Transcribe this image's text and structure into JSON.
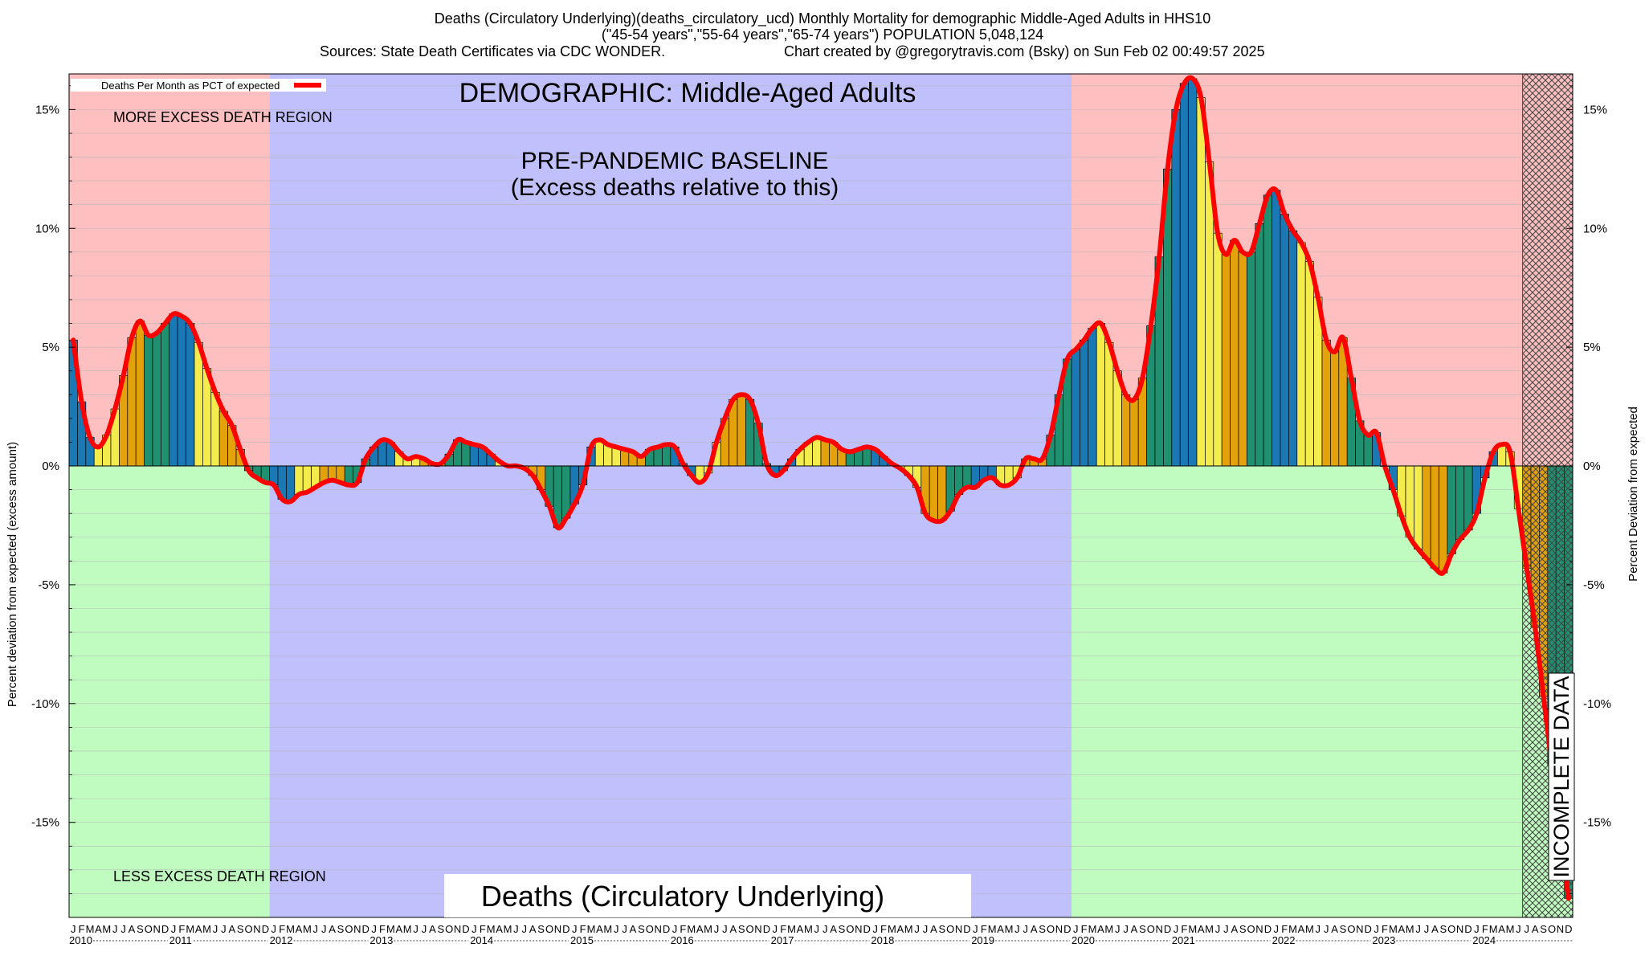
{
  "header": {
    "line1": "Deaths (Circulatory Underlying)(deaths_circulatory_ucd) Monthly Mortality for demographic Middle-Aged Adults in HHS10",
    "line2": "(\"45-54 years\",\"55-64 years\",\"65-74 years\") POPULATION 5,048,124",
    "line3a": "Sources: State Death Certificates via CDC WONDER.",
    "line3b": "Chart created by @gregorytravis.com (Bsky) on Sun Feb 02 00:49:57 2025"
  },
  "colors": {
    "excess_region": "#fdbfbf",
    "less_region": "#c0fbc0",
    "baseline_region": "#c0c0fd",
    "curve": "#ff0000",
    "bar_palette": [
      "#1a78b4",
      "#f4ec4c",
      "#e3a10b",
      "#1f9170"
    ]
  },
  "chart_data": {
    "type": "bar",
    "title": "Deaths (Circulatory Underlying)",
    "banner": "DEMOGRAPHIC: Middle-Aged Adults",
    "baseline_label_line1": "PRE-PANDEMIC BASELINE",
    "baseline_label_line2": "(Excess deaths relative to this)",
    "more_region_label": "MORE EXCESS DEATH REGION",
    "less_region_label": "LESS EXCESS DEATH REGION",
    "incomplete_label": "INCOMPLETE DATA",
    "legend_label": "Deaths Per Month as PCT of expected",
    "ylabel_left": "Percent deviation from expected (excess amount)",
    "ylabel_right": "Percent Deviation from expected",
    "ylim": [
      -19.0,
      16.5
    ],
    "yticks": [
      15,
      10,
      5,
      0,
      -5,
      -10,
      -15
    ],
    "ytick_labels": [
      "15%",
      "10%",
      "5%",
      "0%",
      "-5%",
      "-10%",
      "-15%"
    ],
    "x_start": "2010-01",
    "month_letters": [
      "J",
      "F",
      "M",
      "A",
      "M",
      "J",
      "J",
      "A",
      "S",
      "O",
      "N",
      "D"
    ],
    "year_labels": [
      "2010",
      "2011",
      "2012",
      "2013",
      "2014",
      "2015",
      "2016",
      "2017",
      "2018",
      "2019",
      "2020",
      "2021",
      "2022",
      "2023",
      "2024"
    ],
    "baseline_period": [
      "2012-01",
      "2019-12"
    ],
    "incomplete_period": [
      "2024-07",
      "2024-12"
    ],
    "values": [
      5.3,
      2.7,
      1.2,
      0.8,
      1.3,
      2.4,
      3.8,
      5.4,
      6.1,
      5.5,
      5.6,
      6.0,
      6.4,
      6.3,
      6.0,
      5.2,
      4.1,
      3.1,
      2.3,
      1.7,
      0.7,
      -0.2,
      -0.5,
      -0.7,
      -0.8,
      -1.4,
      -1.5,
      -1.2,
      -1.1,
      -0.9,
      -0.7,
      -0.6,
      -0.7,
      -0.8,
      -0.7,
      0.3,
      0.8,
      1.1,
      1.0,
      0.6,
      0.3,
      0.4,
      0.3,
      0.1,
      0.1,
      0.5,
      1.1,
      1.0,
      0.9,
      0.8,
      0.5,
      0.2,
      0.0,
      0.0,
      -0.1,
      -0.4,
      -1.0,
      -1.7,
      -2.6,
      -2.2,
      -1.6,
      -0.8,
      0.8,
      1.1,
      0.9,
      0.8,
      0.7,
      0.6,
      0.4,
      0.7,
      0.8,
      0.9,
      0.8,
      0.1,
      -0.4,
      -0.7,
      -0.3,
      1.0,
      2.0,
      2.8,
      3.0,
      2.8,
      1.8,
      0.1,
      -0.4,
      -0.2,
      0.3,
      0.7,
      1.0,
      1.2,
      1.1,
      1.0,
      0.7,
      0.6,
      0.7,
      0.8,
      0.7,
      0.4,
      0.1,
      -0.1,
      -0.4,
      -0.9,
      -2.0,
      -2.3,
      -2.3,
      -1.9,
      -1.2,
      -0.9,
      -0.9,
      -0.6,
      -0.5,
      -0.8,
      -0.8,
      -0.5,
      0.3,
      0.3,
      0.3,
      1.3,
      3.0,
      4.5,
      4.9,
      5.3,
      5.8,
      6.0,
      5.2,
      4.0,
      3.0,
      2.8,
      3.7,
      5.9,
      8.8,
      12.5,
      15.0,
      16.1,
      16.3,
      15.5,
      12.8,
      9.8,
      8.9,
      9.5,
      9.0,
      9.0,
      10.2,
      11.4,
      11.6,
      10.6,
      9.9,
      9.4,
      8.6,
      7.1,
      5.3,
      4.8,
      5.4,
      3.7,
      1.9,
      1.3,
      1.4,
      0.0,
      -1.0,
      -2.1,
      -3.0,
      -3.5,
      -3.9,
      -4.3,
      -4.5,
      -3.7,
      -3.1,
      -2.7,
      -2.0,
      -0.5,
      0.6,
      0.9,
      0.6,
      -1.8,
      -4.3,
      -6.8,
      -9.7,
      -12.6,
      -15.5,
      -18.2
    ]
  }
}
